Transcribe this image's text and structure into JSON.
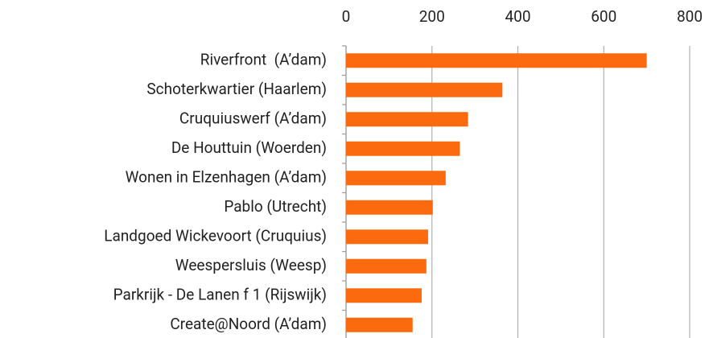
{
  "chart_data": {
    "type": "bar",
    "orientation": "horizontal",
    "categories": [
      "Riverfront  (A’dam)",
      "Schoterkwartier (Haarlem)",
      "Cruquiuswerf (A’dam)",
      "De Houttuin (Woerden)",
      "Wonen in Elzenhagen (A’dam)",
      "Pablo (Utrecht)",
      "Landgoed Wickevoort (Cruquius)",
      "Weespersluis (Weesp)",
      "Parkrijk - De Lanen f 1 (Rijswijk)",
      "Create@Noord (A’dam)"
    ],
    "values": [
      700,
      364,
      284,
      265,
      232,
      202,
      191,
      187,
      176,
      155
    ],
    "color": "#fb6a0f",
    "xlim": [
      0,
      800
    ],
    "xticks": [
      0,
      200,
      400,
      600,
      800
    ],
    "grid": true
  }
}
